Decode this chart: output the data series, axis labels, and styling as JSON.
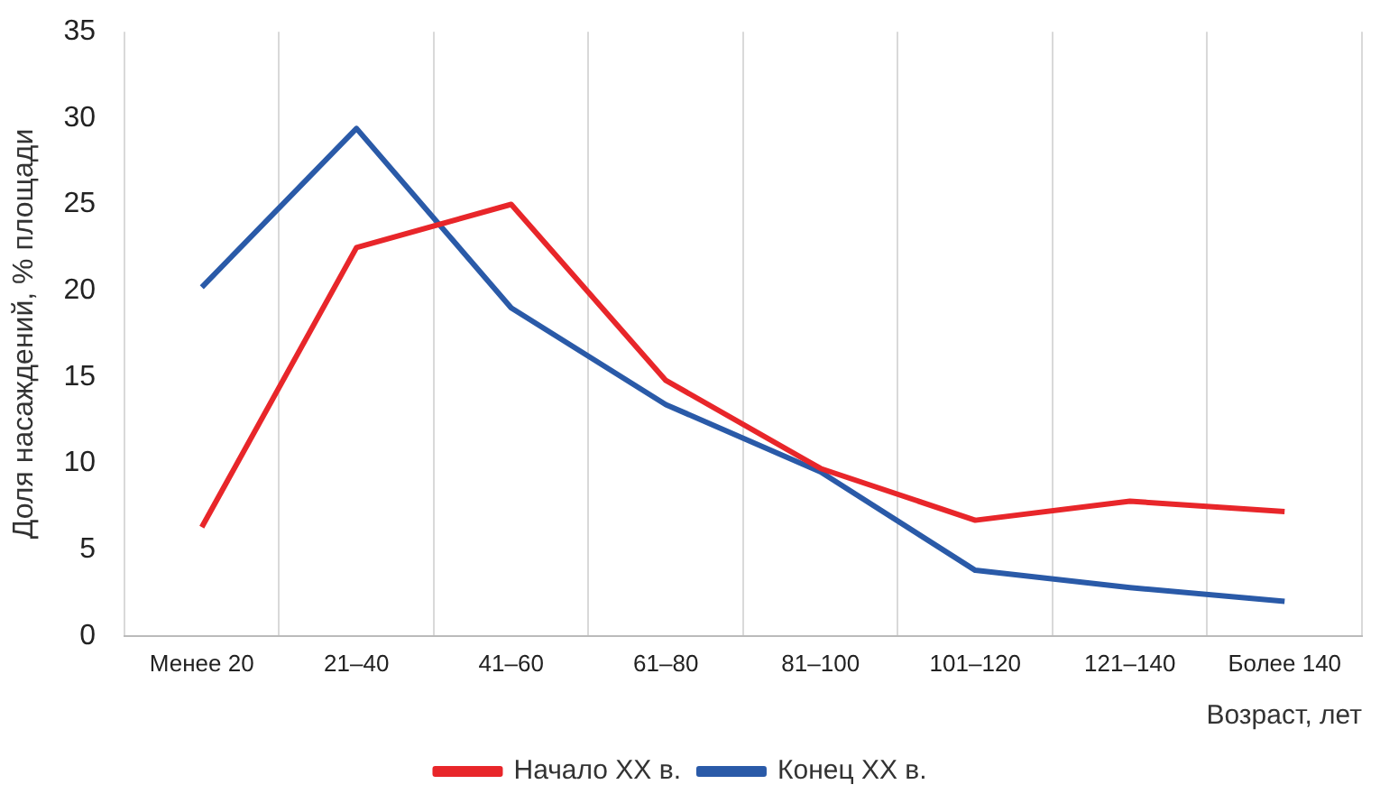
{
  "chart_data": {
    "type": "line",
    "xlabel": "Возраст, лет",
    "ylabel": "Доля насаждений, % площади",
    "categories": [
      "Менее 20",
      "21–40",
      "41–60",
      "61–80",
      "81–100",
      "101–120",
      "121–140",
      "Более 140"
    ],
    "series": [
      {
        "name": "Начало XX в.",
        "color": "#e8262a",
        "values": [
          6.3,
          22.5,
          25,
          14.8,
          9.7,
          6.7,
          7.8,
          7.2
        ]
      },
      {
        "name": "Конец XX в.",
        "color": "#2a5aa8",
        "values": [
          20.2,
          29.4,
          19,
          13.4,
          9.5,
          3.8,
          2.8,
          2.0
        ]
      }
    ],
    "ylim": [
      0,
      35
    ],
    "yticks": [
      0,
      5,
      10,
      15,
      20,
      25,
      30,
      35
    ],
    "grid": "x",
    "legend": "bottom",
    "marker": "none",
    "line_style": "solid"
  }
}
